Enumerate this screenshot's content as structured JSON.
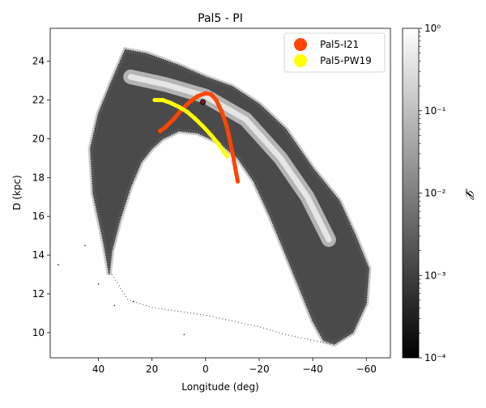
{
  "chart_data": {
    "type": "scatter",
    "title": "Pal5 - PI",
    "xlabel": "Longitude (deg)",
    "ylabel": "D (kpc)",
    "xlim": [
      58,
      -69
    ],
    "ylim": [
      8.7,
      25.7
    ],
    "x_ticks": [
      40,
      20,
      0,
      -20,
      -40,
      -60
    ],
    "x_tick_labels": [
      "40",
      "20",
      "0",
      "−20",
      "−40",
      "−60"
    ],
    "y_ticks": [
      10,
      12,
      14,
      16,
      18,
      20,
      22,
      24
    ],
    "y_tick_labels": [
      "10",
      "12",
      "14",
      "16",
      "18",
      "20",
      "22",
      "24"
    ],
    "legend_position": "upper-right",
    "series": [
      {
        "name": "Pal5-I21",
        "color": "#ff4500",
        "x": [
          17,
          15,
          12,
          9,
          6,
          3,
          0,
          -2,
          -4,
          -6,
          -8,
          -10,
          -12
        ],
        "y": [
          20.4,
          20.6,
          21.0,
          21.5,
          21.9,
          22.2,
          22.35,
          22.3,
          22.0,
          21.4,
          20.6,
          19.3,
          17.8
        ]
      },
      {
        "name": "Pal5-PW19",
        "color": "#ffff00",
        "x": [
          19,
          16,
          13,
          10,
          7,
          4,
          1,
          -2,
          -5,
          -8
        ],
        "y": [
          22.0,
          22.0,
          21.85,
          21.65,
          21.4,
          21.05,
          20.65,
          20.2,
          19.7,
          19.1
        ]
      }
    ],
    "cluster_marker": {
      "x": 1,
      "y": 21.9
    },
    "stream_density": {
      "description_colormap": "greys",
      "outer_edge": [
        [
          30,
          24.6
        ],
        [
          22,
          24.4
        ],
        [
          10,
          23.8
        ],
        [
          0,
          23.2
        ],
        [
          -10,
          22.7
        ],
        [
          -20,
          21.8
        ],
        [
          -30,
          20.5
        ],
        [
          -40,
          18.5
        ],
        [
          -50,
          16.8
        ],
        [
          -56,
          15.0
        ],
        [
          -61,
          13.3
        ],
        [
          -60,
          11.5
        ],
        [
          -55,
          10.0
        ],
        [
          -48,
          9.4
        ],
        [
          -44,
          9.6
        ],
        [
          -40,
          10.6
        ],
        [
          -35,
          12.3
        ],
        [
          -30,
          14.0
        ]
      ],
      "inner_edge": [
        [
          -30,
          14.0
        ],
        [
          -24,
          16.0
        ],
        [
          -18,
          17.8
        ],
        [
          -12,
          19.0
        ],
        [
          -5,
          19.8
        ],
        [
          3,
          20.3
        ],
        [
          10,
          20.4
        ],
        [
          16,
          20.0
        ],
        [
          20,
          19.5
        ],
        [
          24,
          18.8
        ],
        [
          28,
          17.5
        ],
        [
          32,
          15.8
        ],
        [
          35,
          14.2
        ],
        [
          36,
          13.0
        ],
        [
          38,
          14.6
        ],
        [
          42,
          17.2
        ],
        [
          43,
          19.5
        ],
        [
          40,
          21.3
        ],
        [
          35,
          23.0
        ]
      ],
      "faint_tail": [
        [
          35,
          13.0
        ],
        [
          29,
          11.7
        ],
        [
          20,
          11.3
        ],
        [
          10,
          11.1
        ],
        [
          0,
          10.9
        ],
        [
          -10,
          10.6
        ],
        [
          -20,
          10.3
        ],
        [
          -30,
          9.9
        ],
        [
          -40,
          9.6
        ],
        [
          -47,
          9.4
        ]
      ],
      "isolated_points": [
        [
          55,
          13.5
        ],
        [
          45,
          14.5
        ],
        [
          40,
          12.5
        ],
        [
          34,
          11.4
        ],
        [
          27,
          11.6
        ],
        [
          8,
          9.9
        ]
      ]
    },
    "colorbar": {
      "label": "𝓛",
      "scale": "log",
      "min": 0.0001,
      "max": 1,
      "tick_labels": [
        "10⁻⁴",
        "10⁻³",
        "10⁻²",
        "10⁻¹",
        "10⁰"
      ]
    }
  }
}
